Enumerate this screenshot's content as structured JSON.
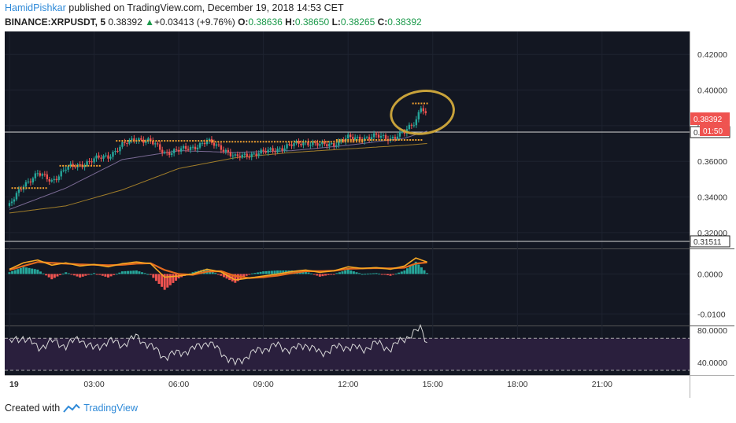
{
  "header": {
    "author": "HamidPishkar",
    "published_text": "published on TradingView.com, December 19, 2018 14:53 CET",
    "symbol": "BINANCE:XRPUSDT, 5",
    "last": "0.38392",
    "change": "+0.03413 (+9.76%)",
    "o_label": "O:",
    "o_value": "0.38636",
    "h_label": "H:",
    "h_value": "0.38650",
    "l_label": "L:",
    "l_value": "0.38265",
    "c_label": "C:",
    "c_value": "0.38392"
  },
  "footer": {
    "created_with": "Created with",
    "brand": "TradingView"
  },
  "colors": {
    "background": "#131722",
    "grid": "#1e2330",
    "up_candle": "#26a69a",
    "down_candle": "#ef5350",
    "sma": "#7a6a94",
    "ema": "#a07d2a",
    "dots": "#f0a030",
    "circle": "#c8a23a",
    "macd_line": "#f5a623",
    "signal_line": "#e36a1f",
    "rsi_line": "#d8d8d8",
    "rsi_band": "#2a1f3d",
    "price_tag": "#ef5350"
  },
  "chart_data": [
    {
      "type": "candlestick",
      "title": "BINANCE:XRPUSDT, 5",
      "x_ticks": [
        "19",
        "03:00",
        "06:00",
        "09:00",
        "12:00",
        "15:00",
        "18:00",
        "21:00"
      ],
      "y_ticks": [
        "0.42000",
        "0.40000",
        "0.38000",
        "0.36000",
        "0.34000",
        "0.32000"
      ],
      "ylim": [
        0.312,
        0.432
      ],
      "last_price_tag": "0.38392",
      "countdown_tag": "01:50",
      "resistance_level": {
        "value": 0.3764,
        "label": "0.37643"
      },
      "support_level": {
        "value": 0.3151,
        "label": "0.31511"
      },
      "close_path": {
        "x_hours": [
          0,
          0.5,
          1,
          1.5,
          2,
          2.5,
          3,
          3.5,
          4,
          4.5,
          5,
          5.5,
          6,
          6.5,
          7,
          7.5,
          8,
          8.5,
          9,
          9.5,
          10,
          10.5,
          11,
          11.5,
          12,
          12.5,
          13,
          13.5,
          14,
          14.4,
          14.6,
          14.8
        ],
        "close": [
          0.335,
          0.347,
          0.353,
          0.349,
          0.356,
          0.358,
          0.361,
          0.363,
          0.369,
          0.373,
          0.371,
          0.365,
          0.366,
          0.368,
          0.371,
          0.368,
          0.362,
          0.364,
          0.365,
          0.367,
          0.369,
          0.371,
          0.369,
          0.37,
          0.373,
          0.373,
          0.374,
          0.373,
          0.376,
          0.383,
          0.392,
          0.38392
        ]
      },
      "sma": {
        "x_hours": [
          0,
          2,
          4,
          6,
          8,
          10,
          12,
          14,
          14.8
        ],
        "values": [
          0.333,
          0.345,
          0.361,
          0.366,
          0.365,
          0.366,
          0.369,
          0.373,
          0.377
        ]
      },
      "ema": {
        "x_hours": [
          0,
          2,
          4,
          6,
          8,
          10,
          12,
          14,
          14.8
        ],
        "values": [
          0.331,
          0.335,
          0.344,
          0.356,
          0.362,
          0.365,
          0.367,
          0.369,
          0.37
        ]
      },
      "dot_levels": [
        {
          "from_hours": 0.1,
          "to_hours": 1.3,
          "value": 0.345
        },
        {
          "from_hours": 1.8,
          "to_hours": 3.2,
          "value": 0.3575
        },
        {
          "from_hours": 3.8,
          "to_hours": 7.2,
          "value": 0.3715
        },
        {
          "from_hours": 7.2,
          "to_hours": 12.5,
          "value": 0.371
        },
        {
          "from_hours": 11.6,
          "to_hours": 14.6,
          "value": 0.372
        },
        {
          "from_hours": 14.3,
          "to_hours": 14.8,
          "value": 0.3925
        }
      ]
    },
    {
      "type": "line",
      "name": "MACD",
      "y_ticks": [
        "0.0000",
        "-0.0100"
      ],
      "ylim": [
        -0.0125,
        0.006
      ],
      "x_hours": [
        0,
        0.5,
        1,
        1.5,
        2,
        2.5,
        3,
        3.5,
        4,
        4.5,
        5,
        5.5,
        6,
        6.5,
        7,
        7.5,
        8,
        8.5,
        9,
        9.5,
        10,
        10.5,
        11,
        11.5,
        12,
        12.5,
        13,
        13.5,
        14,
        14.4,
        14.8
      ],
      "macd": [
        0.0012,
        0.0028,
        0.0035,
        0.0022,
        0.0028,
        0.002,
        0.0024,
        0.0018,
        0.0026,
        0.003,
        0.0026,
        -0.0008,
        -0.0005,
        0.0,
        0.0012,
        0.0005,
        -0.0015,
        -0.001,
        -0.0005,
        0.0,
        0.0006,
        0.001,
        0.0004,
        0.0008,
        0.0018,
        0.0014,
        0.0016,
        0.0012,
        0.002,
        0.004,
        0.003
      ],
      "signal": [
        0.001,
        0.002,
        0.003,
        0.0028,
        0.0026,
        0.0024,
        0.0023,
        0.0022,
        0.0023,
        0.0026,
        0.0027,
        0.001,
        0.0,
        -0.0002,
        0.0006,
        0.0007,
        -0.0005,
        -0.001,
        -0.0008,
        -0.0004,
        0.0002,
        0.0007,
        0.0007,
        0.0008,
        0.0013,
        0.0014,
        0.0015,
        0.0014,
        0.0016,
        0.0026,
        0.0029
      ]
    },
    {
      "type": "line",
      "name": "RSI",
      "y_ticks": [
        "80.0000",
        "40.0000"
      ],
      "ylim": [
        27,
        84
      ],
      "band": [
        30,
        70
      ],
      "x_hours": [
        0,
        0.5,
        1,
        1.5,
        2,
        2.5,
        3,
        3.5,
        4,
        4.5,
        5,
        5.5,
        6,
        6.5,
        7,
        7.5,
        8,
        8.5,
        9,
        9.5,
        10,
        10.5,
        11,
        11.5,
        12,
        12.5,
        13,
        13.5,
        14,
        14.4,
        14.6,
        14.8
      ],
      "values": [
        64,
        72,
        58,
        66,
        61,
        70,
        56,
        67,
        62,
        72,
        60,
        47,
        52,
        56,
        66,
        53,
        38,
        50,
        57,
        61,
        55,
        63,
        51,
        58,
        60,
        56,
        64,
        57,
        70,
        78,
        82,
        64
      ]
    }
  ]
}
